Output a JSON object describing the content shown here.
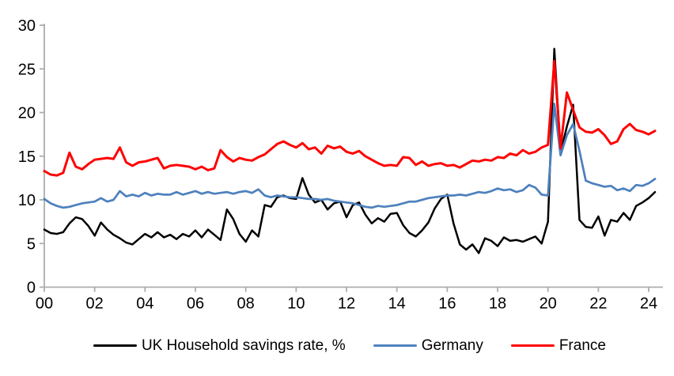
{
  "chart_data": {
    "type": "line",
    "title": "",
    "xlabel": "",
    "ylabel": "",
    "ylim": [
      0,
      30
    ],
    "y_ticks": [
      0,
      5,
      10,
      15,
      20,
      25,
      30
    ],
    "x_tick_labels": [
      "00",
      "02",
      "04",
      "06",
      "08",
      "10",
      "12",
      "14",
      "16",
      "18",
      "20",
      "22",
      "24"
    ],
    "x_tick_every_n_points": 8,
    "frequency": "quarterly",
    "x_start_period": "2000 Q1",
    "x_end_period": "2024 Q2",
    "grid": false,
    "legend_position": "bottom",
    "axis_color": "#ACACAC",
    "tick_label_color": "#000000",
    "series": [
      {
        "name": "UK Household savings rate, %",
        "color": "#000000",
        "values": [
          6.6,
          6.2,
          6.1,
          6.3,
          7.3,
          8.0,
          7.8,
          7.0,
          5.9,
          7.4,
          6.6,
          6.0,
          5.6,
          5.1,
          4.9,
          5.5,
          6.1,
          5.7,
          6.3,
          5.7,
          6.0,
          5.5,
          6.1,
          5.8,
          6.5,
          5.7,
          6.6,
          6.0,
          5.4,
          8.9,
          7.8,
          6.1,
          5.2,
          6.5,
          5.8,
          9.4,
          9.2,
          10.3,
          10.5,
          10.2,
          10.1,
          12.5,
          10.6,
          9.7,
          10.0,
          8.9,
          9.6,
          9.8,
          8.0,
          9.4,
          9.7,
          8.3,
          7.3,
          7.9,
          7.5,
          8.4,
          8.5,
          7.1,
          6.2,
          5.8,
          6.5,
          7.4,
          9.0,
          10.1,
          10.6,
          7.3,
          4.9,
          4.3,
          4.9,
          3.9,
          5.6,
          5.3,
          4.7,
          5.7,
          5.3,
          5.4,
          5.2,
          5.5,
          5.8,
          5.0,
          7.5,
          27.3,
          15.4,
          18.4,
          20.9,
          7.7,
          6.9,
          6.8,
          8.1,
          5.9,
          7.7,
          7.5,
          8.5,
          7.7,
          9.3,
          9.7,
          10.2,
          10.9
        ]
      },
      {
        "name": "Germany",
        "color": "#4E81BD",
        "values": [
          10.1,
          9.6,
          9.3,
          9.1,
          9.2,
          9.4,
          9.6,
          9.7,
          9.8,
          10.2,
          9.8,
          10.0,
          11.0,
          10.4,
          10.6,
          10.4,
          10.8,
          10.5,
          10.7,
          10.6,
          10.6,
          10.9,
          10.6,
          10.8,
          11.0,
          10.7,
          10.9,
          10.7,
          10.8,
          10.9,
          10.7,
          10.9,
          11.0,
          10.8,
          11.2,
          10.5,
          10.3,
          10.5,
          10.4,
          10.3,
          10.3,
          10.2,
          10.1,
          10.1,
          10.0,
          10.1,
          9.9,
          9.8,
          9.7,
          9.6,
          9.4,
          9.2,
          9.1,
          9.3,
          9.2,
          9.3,
          9.4,
          9.6,
          9.8,
          9.8,
          10.0,
          10.2,
          10.3,
          10.4,
          10.5,
          10.5,
          10.6,
          10.5,
          10.7,
          10.9,
          10.8,
          11.0,
          11.3,
          11.1,
          11.2,
          10.9,
          11.1,
          11.7,
          11.4,
          10.6,
          10.5,
          21.0,
          15.1,
          17.4,
          18.7,
          15.6,
          12.2,
          11.9,
          11.7,
          11.5,
          11.6,
          11.1,
          11.3,
          11.0,
          11.7,
          11.6,
          11.9,
          12.4
        ]
      },
      {
        "name": "France",
        "color": "#FF0000",
        "values": [
          13.3,
          12.9,
          12.8,
          13.1,
          15.4,
          13.8,
          13.5,
          14.1,
          14.6,
          14.7,
          14.8,
          14.7,
          16.0,
          14.3,
          13.9,
          14.3,
          14.4,
          14.6,
          14.8,
          13.6,
          13.9,
          14.0,
          13.9,
          13.8,
          13.5,
          13.8,
          13.4,
          13.6,
          15.7,
          14.9,
          14.4,
          14.8,
          14.6,
          14.5,
          14.9,
          15.2,
          15.8,
          16.4,
          16.7,
          16.3,
          16.0,
          16.5,
          15.8,
          16.0,
          15.3,
          16.2,
          15.9,
          16.1,
          15.5,
          15.3,
          15.6,
          15.0,
          14.6,
          14.2,
          13.9,
          14.0,
          13.9,
          14.9,
          14.8,
          14.0,
          14.4,
          13.9,
          14.1,
          14.2,
          13.9,
          14.0,
          13.7,
          14.1,
          14.5,
          14.4,
          14.6,
          14.5,
          14.9,
          14.8,
          15.3,
          15.1,
          15.7,
          15.3,
          15.5,
          16.0,
          16.3,
          25.9,
          15.9,
          22.3,
          20.3,
          18.3,
          17.8,
          17.7,
          18.1,
          17.4,
          16.4,
          16.7,
          18.1,
          18.7,
          18.0,
          17.8,
          17.5,
          17.9
        ]
      }
    ]
  },
  "legend": {
    "uk_label": "UK Household savings rate, %",
    "germany_label": "Germany",
    "france_label": "France"
  }
}
